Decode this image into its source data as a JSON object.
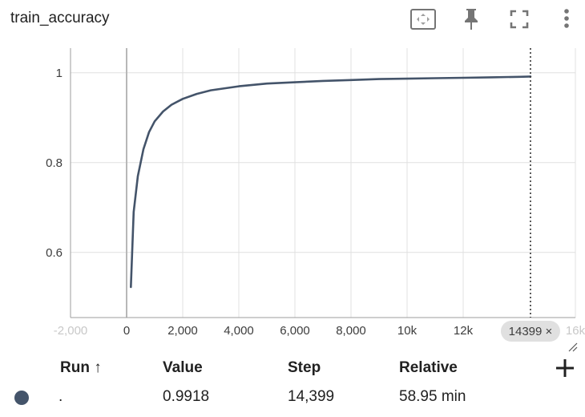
{
  "card": {
    "title": "train_accuracy"
  },
  "toolbar": {
    "buttons": [
      {
        "icon": "fit-domain-icon"
      },
      {
        "icon": "pin-icon"
      },
      {
        "icon": "fullscreen-icon"
      },
      {
        "icon": "more-vert-icon"
      }
    ]
  },
  "chart_data": {
    "type": "line",
    "xlabel": "",
    "ylabel": "",
    "xlim": [
      -2000,
      16000
    ],
    "ylim": [
      0.455,
      1.055
    ],
    "grid": true,
    "x_ticks": [
      {
        "value": -2000,
        "label": "-2,000",
        "faded": true
      },
      {
        "value": 0,
        "label": "0"
      },
      {
        "value": 2000,
        "label": "2,000"
      },
      {
        "value": 4000,
        "label": "4,000"
      },
      {
        "value": 6000,
        "label": "6,000"
      },
      {
        "value": 8000,
        "label": "8,000"
      },
      {
        "value": 10000,
        "label": "10k"
      },
      {
        "value": 12000,
        "label": "12k"
      },
      {
        "value": 16000,
        "label": "16k",
        "faded": true
      }
    ],
    "y_ticks": [
      {
        "value": 0.6,
        "label": "0.6"
      },
      {
        "value": 0.8,
        "label": "0.8"
      },
      {
        "value": 1,
        "label": "1"
      }
    ],
    "series": [
      {
        "color": "#44546a",
        "x": [
          150,
          250,
          400,
          600,
          800,
          1000,
          1300,
          1600,
          2000,
          2500,
          3000,
          4000,
          5000,
          6000,
          7000,
          8000,
          9000,
          10000,
          11000,
          12000,
          13000,
          14000,
          14399
        ],
        "y": [
          0.523,
          0.69,
          0.77,
          0.83,
          0.868,
          0.892,
          0.914,
          0.929,
          0.942,
          0.953,
          0.961,
          0.97,
          0.976,
          0.979,
          0.982,
          0.984,
          0.986,
          0.987,
          0.988,
          0.989,
          0.99,
          0.991,
          0.9918
        ]
      }
    ],
    "cursor": {
      "x": 14399,
      "label": "14399 ×"
    }
  },
  "table": {
    "headers": {
      "run": "Run ↑",
      "value": "Value",
      "step": "Step",
      "relative": "Relative"
    },
    "rows": [
      {
        "color": "#44546a",
        "run": ".",
        "value": "0.9918",
        "step": "14,399",
        "relative": "58.95 min"
      }
    ]
  }
}
